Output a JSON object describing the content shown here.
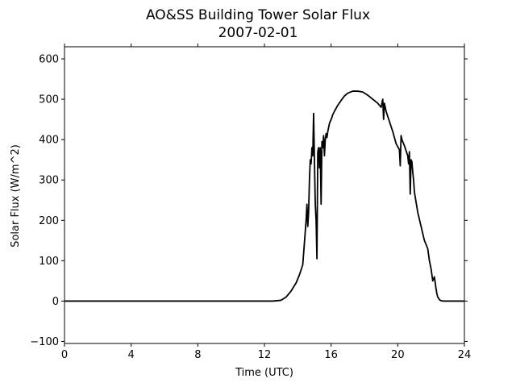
{
  "chart_data": {
    "type": "line",
    "title": "AO&SS Building Tower Solar Flux",
    "subtitle": "2007-02-01",
    "xlabel": "Time (UTC)",
    "ylabel": "Solar Flux (W/m^2)",
    "xlim": [
      0,
      24
    ],
    "ylim": [
      -105,
      630
    ],
    "xticks": [
      0,
      4,
      8,
      12,
      16,
      20,
      24
    ],
    "yticks": [
      -100,
      0,
      100,
      200,
      300,
      400,
      500,
      600
    ],
    "xtick_labels": [
      "0",
      "4",
      "8",
      "12",
      "16",
      "20",
      "24"
    ],
    "ytick_labels": [
      "−100",
      "0",
      "100",
      "200",
      "300",
      "400",
      "500",
      "600"
    ],
    "grid": false,
    "series": [
      {
        "color": "#000000",
        "x": [
          0,
          12.5,
          13.0,
          13.3,
          13.6,
          13.9,
          14.1,
          14.3,
          14.5,
          14.55,
          14.6,
          14.65,
          14.7,
          14.75,
          14.8,
          14.85,
          14.9,
          14.95,
          15.0,
          15.05,
          15.1,
          15.15,
          15.2,
          15.25,
          15.3,
          15.35,
          15.4,
          15.45,
          15.5,
          15.55,
          15.6,
          15.65,
          15.7,
          15.75,
          15.8,
          15.85,
          15.9,
          15.95,
          16.0,
          16.05,
          16.1,
          16.2,
          16.4,
          16.6,
          16.8,
          17.0,
          17.3,
          17.6,
          17.9,
          18.2,
          18.5,
          18.8,
          19.0,
          19.1,
          19.15,
          19.2,
          19.25,
          19.3,
          19.5,
          19.7,
          19.9,
          20.1,
          20.15,
          20.2,
          20.25,
          20.4,
          20.6,
          20.65,
          20.7,
          20.75,
          20.8,
          20.85,
          20.9,
          20.95,
          21.0,
          21.2,
          21.4,
          21.6,
          21.8,
          21.9,
          22.0,
          22.1,
          22.2,
          22.3,
          22.35,
          22.4,
          22.5,
          22.55,
          22.6,
          22.7,
          22.8,
          23.0,
          23.2,
          23.5,
          24.0
        ],
        "y": [
          0,
          0,
          2,
          10,
          25,
          45,
          65,
          90,
          200,
          240,
          185,
          220,
          300,
          350,
          340,
          380,
          360,
          465,
          350,
          240,
          200,
          105,
          370,
          380,
          330,
          380,
          240,
          395,
          380,
          410,
          360,
          400,
          415,
          405,
          420,
          430,
          440,
          445,
          450,
          455,
          462,
          470,
          485,
          497,
          508,
          515,
          520,
          520,
          518,
          510,
          500,
          490,
          480,
          500,
          450,
          490,
          480,
          470,
          445,
          420,
          390,
          375,
          335,
          410,
          400,
          385,
          360,
          340,
          370,
          265,
          350,
          345,
          320,
          300,
          270,
          220,
          185,
          150,
          130,
          100,
          80,
          50,
          60,
          30,
          18,
          10,
          4,
          2,
          1,
          0,
          0,
          0,
          0,
          0,
          0
        ]
      }
    ]
  }
}
